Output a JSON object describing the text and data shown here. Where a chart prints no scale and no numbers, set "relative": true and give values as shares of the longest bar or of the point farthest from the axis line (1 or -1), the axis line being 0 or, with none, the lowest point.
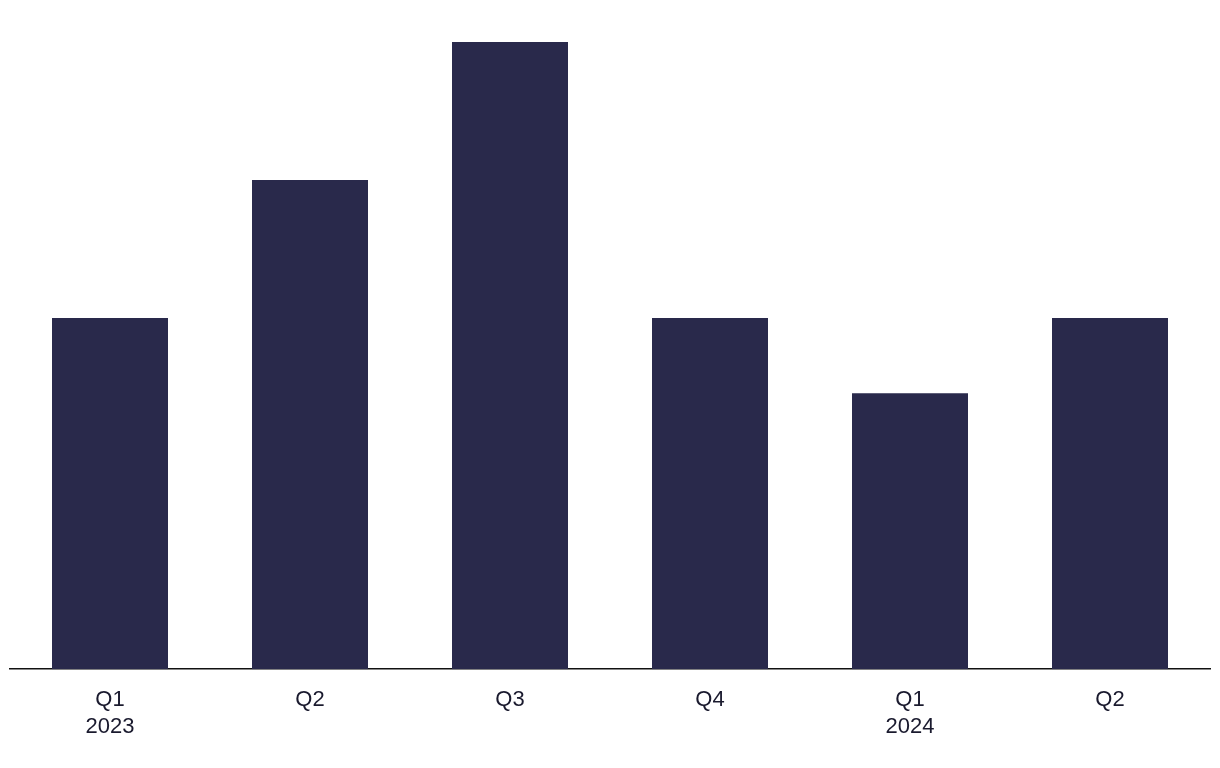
{
  "chart_data": {
    "type": "bar",
    "relative": true,
    "categories": [
      "Q1\n2023",
      "Q2",
      "Q3",
      "Q4",
      "Q1\n2024",
      "Q2"
    ],
    "values": [
      0.56,
      0.78,
      1,
      0.56,
      0.44,
      0.56
    ],
    "color": "#29294b",
    "grid": false,
    "legend": false
  }
}
